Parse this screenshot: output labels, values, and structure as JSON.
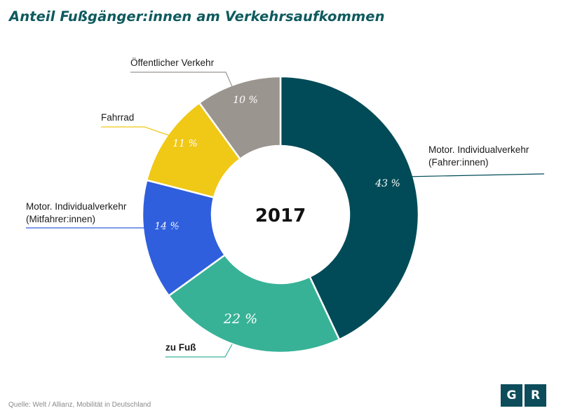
{
  "title": "Anteil Fußgänger:innen am Verkehrsaufkommen",
  "source": "Quelle: Welt / Allianz, Mobilität in Deutschland",
  "logo": [
    "G",
    "R"
  ],
  "chart_data": {
    "type": "pie",
    "donut": true,
    "center_label": "2017",
    "slices": [
      {
        "label_lines": [
          "Motor. Individualverkehr",
          "(Fahrer:innen)"
        ],
        "value": 43,
        "value_label": "43 %",
        "color": "#004b57"
      },
      {
        "label_lines": [
          "zu Fuß"
        ],
        "value": 22,
        "value_label": "22 %",
        "color": "#37b297",
        "emphasis": true
      },
      {
        "label_lines": [
          "Motor. Individualverkehr",
          "(Mitfahrer:innen)"
        ],
        "value": 14,
        "value_label": "14 %",
        "color": "#2f5fdd"
      },
      {
        "label_lines": [
          "Fahrrad"
        ],
        "value": 11,
        "value_label": "11 %",
        "color": "#f0c816"
      },
      {
        "label_lines": [
          "Öffentlicher Verkehr"
        ],
        "value": 10,
        "value_label": "10 %",
        "color": "#9a958f"
      }
    ]
  }
}
